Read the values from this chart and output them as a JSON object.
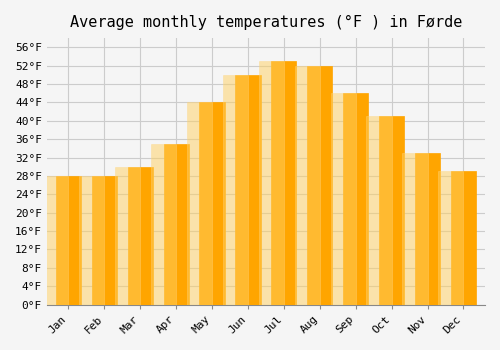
{
  "title": "Average monthly temperatures (°F ) in Førde",
  "months": [
    "Jan",
    "Feb",
    "Mar",
    "Apr",
    "May",
    "Jun",
    "Jul",
    "Aug",
    "Sep",
    "Oct",
    "Nov",
    "Dec"
  ],
  "values": [
    28,
    28,
    30,
    35,
    44,
    50,
    53,
    52,
    46,
    41,
    33,
    29
  ],
  "bar_color": "#FFA500",
  "bar_edge_color": "#FFD580",
  "ylim": [
    0,
    58
  ],
  "yticks": [
    0,
    4,
    8,
    12,
    16,
    20,
    24,
    28,
    32,
    36,
    40,
    44,
    48,
    52,
    56
  ],
  "ytick_labels": [
    "0°F",
    "4°F",
    "8°F",
    "12°F",
    "16°F",
    "20°F",
    "24°F",
    "28°F",
    "32°F",
    "36°F",
    "40°F",
    "44°F",
    "48°F",
    "52°F",
    "56°F"
  ],
  "bg_color": "#F5F5F5",
  "grid_color": "#CCCCCC",
  "title_fontsize": 11,
  "tick_fontsize": 8,
  "font_family": "monospace"
}
